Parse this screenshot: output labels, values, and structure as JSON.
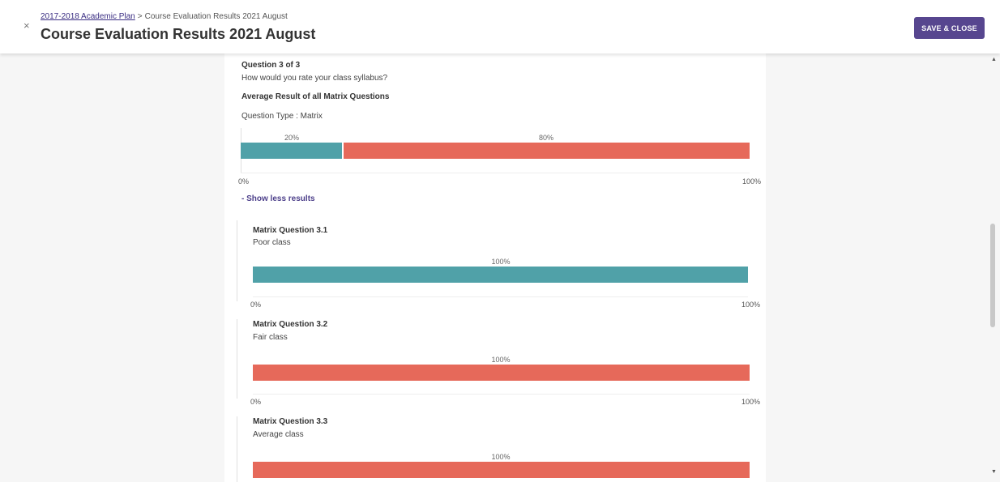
{
  "header": {
    "close_icon": "×",
    "breadcrumb_link": "2017-2018 Academic Plan",
    "breadcrumb_separator": ">",
    "breadcrumb_current": "Course Evaluation Results 2021 August",
    "title": "Course Evaluation Results 2021 August",
    "save_label": "SAVE & CLOSE"
  },
  "question": {
    "counter": "Question 3 of 3",
    "text": "How would you rate your class syllabus?",
    "average_label": "Average Result of all Matrix Questions",
    "type_label": "Question Type : Matrix",
    "segment_labels": [
      "20%",
      "80%"
    ],
    "axis_min": "0%",
    "axis_max": "100%",
    "toggle_label": "- Show less results"
  },
  "matrix_questions": [
    {
      "title": "Matrix Question 3.1",
      "subtitle": "Poor class",
      "pct_label": "100%",
      "axis_min": "0%",
      "axis_max": "100%"
    },
    {
      "title": "Matrix Question 3.2",
      "subtitle": "Fair class",
      "pct_label": "100%",
      "axis_min": "0%",
      "axis_max": "100%"
    },
    {
      "title": "Matrix Question 3.3",
      "subtitle": "Average class",
      "pct_label": "100%"
    }
  ],
  "chart_data": [
    {
      "type": "bar",
      "orientation": "horizontal-stacked",
      "title": "Average Result of all Matrix Questions",
      "series": [
        {
          "values": [
            20
          ]
        },
        {
          "values": [
            80
          ]
        }
      ],
      "xlim": [
        0,
        100
      ],
      "unit": "%",
      "colors": [
        "#50a1a8",
        "#e6695a"
      ]
    },
    {
      "type": "bar",
      "orientation": "horizontal-stacked",
      "title": "Matrix Question 3.1",
      "series": [
        {
          "values": [
            100
          ]
        }
      ],
      "xlim": [
        0,
        100
      ],
      "unit": "%",
      "colors": [
        "#50a1a8"
      ]
    },
    {
      "type": "bar",
      "orientation": "horizontal-stacked",
      "title": "Matrix Question 3.2",
      "series": [
        {
          "values": [
            100
          ]
        }
      ],
      "xlim": [
        0,
        100
      ],
      "unit": "%",
      "colors": [
        "#e6695a"
      ]
    },
    {
      "type": "bar",
      "orientation": "horizontal-stacked",
      "title": "Matrix Question 3.3",
      "series": [
        {
          "values": [
            100
          ]
        }
      ],
      "xlim": [
        0,
        100
      ],
      "unit": "%",
      "colors": [
        "#e6695a"
      ]
    }
  ],
  "colors": {
    "accent": "#57468f",
    "teal": "#50a1a8",
    "red": "#e6695a"
  }
}
